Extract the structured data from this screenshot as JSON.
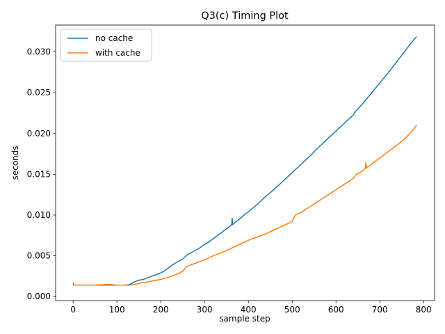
{
  "chart_data": {
    "type": "line",
    "title": "Q3(c) Timing Plot",
    "xlabel": "sample step",
    "ylabel": "seconds",
    "xlim": [
      -40,
      825
    ],
    "ylim": [
      -0.0005,
      0.0333
    ],
    "xticks": [
      0,
      100,
      200,
      300,
      400,
      500,
      600,
      700,
      800
    ],
    "yticks": [
      0.0,
      0.005,
      0.01,
      0.015,
      0.02,
      0.025,
      0.03
    ],
    "ytick_labels": [
      "0.000",
      "0.005",
      "0.010",
      "0.015",
      "0.020",
      "0.025",
      "0.030"
    ],
    "grid": false,
    "legend_position": "top-left",
    "series": [
      {
        "name": "no cache",
        "color": "#1f77b4",
        "points": [
          [
            0,
            0.0017
          ],
          [
            1,
            0.0014
          ],
          [
            20,
            0.0014
          ],
          [
            50,
            0.0014
          ],
          [
            80,
            0.0014
          ],
          [
            100,
            0.0014
          ],
          [
            120,
            0.0014
          ],
          [
            130,
            0.0015
          ],
          [
            140,
            0.0018
          ],
          [
            150,
            0.002
          ],
          [
            160,
            0.0021
          ],
          [
            170,
            0.0023
          ],
          [
            180,
            0.0025
          ],
          [
            190,
            0.0027
          ],
          [
            200,
            0.0029
          ],
          [
            210,
            0.0032
          ],
          [
            220,
            0.0036
          ],
          [
            230,
            0.004
          ],
          [
            240,
            0.0043
          ],
          [
            250,
            0.0046
          ],
          [
            260,
            0.0051
          ],
          [
            270,
            0.0054
          ],
          [
            280,
            0.0057
          ],
          [
            290,
            0.006
          ],
          [
            300,
            0.0064
          ],
          [
            310,
            0.0067
          ],
          [
            320,
            0.0071
          ],
          [
            330,
            0.0075
          ],
          [
            340,
            0.0079
          ],
          [
            350,
            0.0083
          ],
          [
            360,
            0.0087
          ],
          [
            362,
            0.0089
          ],
          [
            363,
            0.0096
          ],
          [
            364,
            0.0088
          ],
          [
            370,
            0.0091
          ],
          [
            380,
            0.0095
          ],
          [
            390,
            0.01
          ],
          [
            400,
            0.0104
          ],
          [
            420,
            0.0113
          ],
          [
            440,
            0.0123
          ],
          [
            460,
            0.0132
          ],
          [
            480,
            0.0142
          ],
          [
            500,
            0.0152
          ],
          [
            510,
            0.0157
          ],
          [
            520,
            0.0162
          ],
          [
            540,
            0.0172
          ],
          [
            560,
            0.0183
          ],
          [
            580,
            0.0193
          ],
          [
            600,
            0.0203
          ],
          [
            620,
            0.0213
          ],
          [
            640,
            0.0223
          ],
          [
            643,
            0.0226
          ],
          [
            660,
            0.0236
          ],
          [
            680,
            0.0249
          ],
          [
            700,
            0.0262
          ],
          [
            720,
            0.0275
          ],
          [
            740,
            0.0289
          ],
          [
            760,
            0.0303
          ],
          [
            770,
            0.031
          ],
          [
            784,
            0.0319
          ]
        ]
      },
      {
        "name": "with cache",
        "color": "#ff7f0e",
        "points": [
          [
            0,
            0.0015
          ],
          [
            1,
            0.0014
          ],
          [
            20,
            0.0014
          ],
          [
            50,
            0.0014
          ],
          [
            80,
            0.0015
          ],
          [
            100,
            0.0014
          ],
          [
            120,
            0.0014
          ],
          [
            130,
            0.0014
          ],
          [
            140,
            0.0015
          ],
          [
            150,
            0.0016
          ],
          [
            160,
            0.0017
          ],
          [
            180,
            0.0019
          ],
          [
            200,
            0.0021
          ],
          [
            220,
            0.0024
          ],
          [
            240,
            0.0028
          ],
          [
            250,
            0.0031
          ],
          [
            255,
            0.0034
          ],
          [
            260,
            0.0037
          ],
          [
            270,
            0.0039
          ],
          [
            280,
            0.0041
          ],
          [
            300,
            0.0045
          ],
          [
            320,
            0.005
          ],
          [
            340,
            0.0054
          ],
          [
            360,
            0.0059
          ],
          [
            380,
            0.0064
          ],
          [
            400,
            0.0069
          ],
          [
            420,
            0.0073
          ],
          [
            440,
            0.0077
          ],
          [
            460,
            0.0082
          ],
          [
            480,
            0.0087
          ],
          [
            500,
            0.0092
          ],
          [
            505,
            0.0098
          ],
          [
            510,
            0.0101
          ],
          [
            520,
            0.0103
          ],
          [
            540,
            0.011
          ],
          [
            560,
            0.0117
          ],
          [
            580,
            0.0124
          ],
          [
            600,
            0.0131
          ],
          [
            620,
            0.0138
          ],
          [
            640,
            0.0145
          ],
          [
            645,
            0.0149
          ],
          [
            660,
            0.0154
          ],
          [
            667,
            0.0157
          ],
          [
            668,
            0.0164
          ],
          [
            670,
            0.0158
          ],
          [
            680,
            0.0162
          ],
          [
            700,
            0.017
          ],
          [
            720,
            0.0178
          ],
          [
            740,
            0.0186
          ],
          [
            760,
            0.0195
          ],
          [
            770,
            0.0201
          ],
          [
            784,
            0.021
          ]
        ]
      }
    ]
  }
}
